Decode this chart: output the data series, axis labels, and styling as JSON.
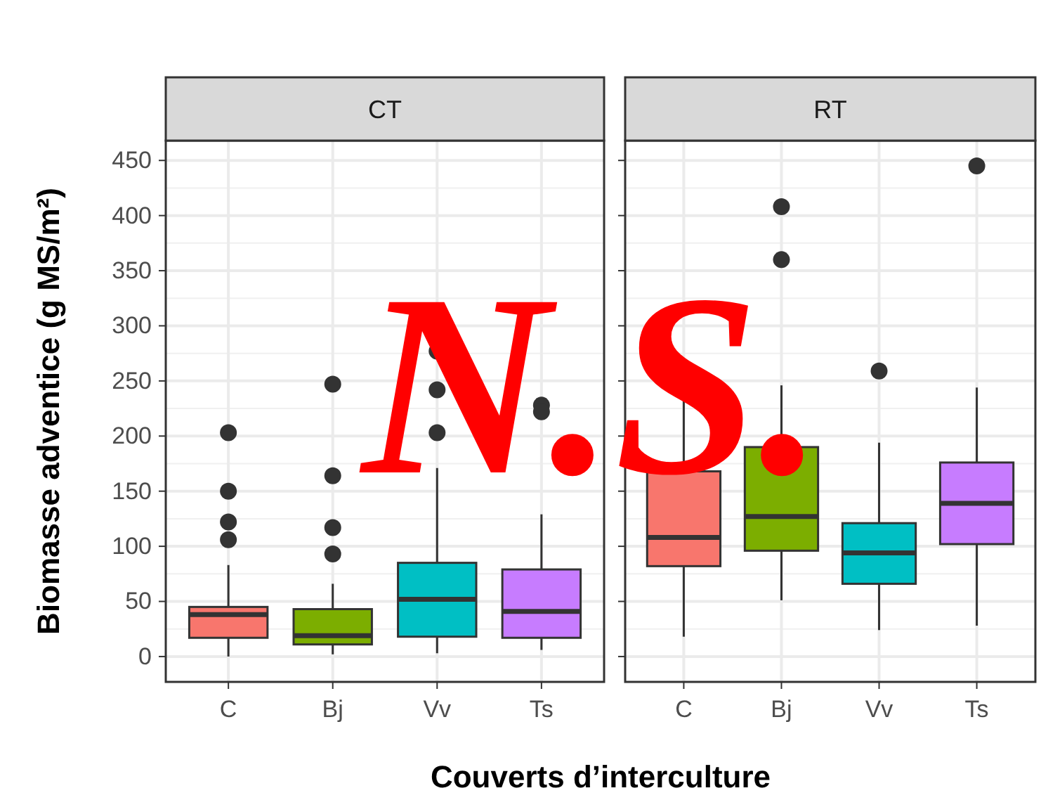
{
  "chart_data": [
    {
      "type": "box",
      "title": "CT",
      "ylabel": "Biomasse adventice (g MS/m²)",
      "xlabel": "Couverts d’interculture",
      "annotations": [
        "N.S."
      ],
      "categories": [
        "C",
        "Bj",
        "Vv",
        "Ts"
      ],
      "colors": [
        "#f8766d",
        "#7cae00",
        "#00bfc4",
        "#c77cff"
      ],
      "ylim": [
        -23,
        468
      ],
      "yticks": [
        0,
        50,
        100,
        150,
        200,
        250,
        300,
        350,
        400,
        450
      ],
      "grid": true,
      "boxes": [
        {
          "low": 0,
          "q1": 17,
          "median": 38,
          "q3": 45,
          "high": 83,
          "outliers": [
            203,
            150,
            122,
            106
          ]
        },
        {
          "low": 2,
          "q1": 11,
          "median": 19,
          "q3": 43,
          "high": 66,
          "outliers": [
            247,
            164,
            117,
            93
          ]
        },
        {
          "low": 3,
          "q1": 18,
          "median": 52,
          "q3": 85,
          "high": 171,
          "outliers": [
            277,
            242,
            203
          ]
        },
        {
          "low": 6,
          "q1": 17,
          "median": 41,
          "q3": 79,
          "high": 129,
          "outliers": [
            228,
            222
          ]
        }
      ]
    },
    {
      "type": "box",
      "title": "RT",
      "categories": [
        "C",
        "Bj",
        "Vv",
        "Ts"
      ],
      "colors": [
        "#f8766d",
        "#7cae00",
        "#00bfc4",
        "#c77cff"
      ],
      "ylim": [
        -23,
        468
      ],
      "yticks": [
        0,
        50,
        100,
        150,
        200,
        250,
        300,
        350,
        400,
        450
      ],
      "grid": true,
      "tick_labels": "x",
      "boxes": [
        {
          "low": 18,
          "q1": 82,
          "median": 108,
          "q3": 168,
          "high": 247
        },
        {
          "low": 51,
          "q1": 96,
          "median": 127,
          "q3": 190,
          "high": 246,
          "outliers": [
            408,
            360
          ]
        },
        {
          "low": 24,
          "q1": 66,
          "median": 94,
          "q3": 121,
          "high": 194,
          "outliers": [
            259
          ]
        },
        {
          "low": 28,
          "q1": 102,
          "median": 139,
          "q3": 176,
          "high": 244,
          "outliers": [
            445
          ]
        }
      ]
    }
  ]
}
